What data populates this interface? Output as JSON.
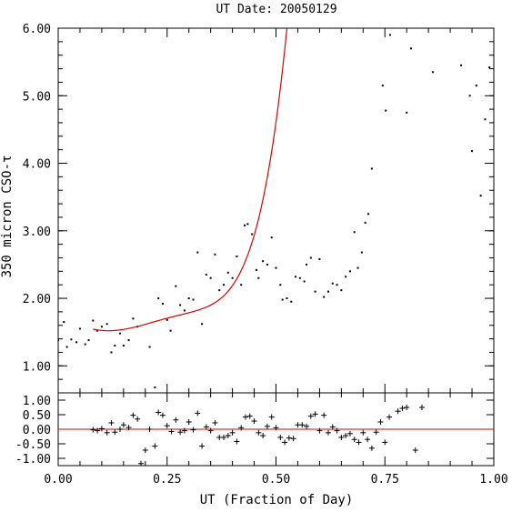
{
  "chart_data": [
    {
      "type": "scatter",
      "title": "UT Date: 20050129",
      "ylabel": "350 micron CSO-τ",
      "xlim": [
        0,
        1
      ],
      "ylim": [
        0.6,
        6.0
      ],
      "yticks": [
        "1.00",
        "2.00",
        "3.00",
        "4.00",
        "5.00",
        "6.00"
      ],
      "series": [
        {
          "points": [
            [
              0.0,
              1.38
            ],
            [
              0.013,
              1.65
            ],
            [
              0.02,
              1.28
            ],
            [
              0.03,
              1.39
            ],
            [
              0.042,
              1.35
            ],
            [
              0.05,
              1.55
            ],
            [
              0.062,
              1.32
            ],
            [
              0.07,
              1.38
            ],
            [
              0.08,
              1.67
            ],
            [
              0.09,
              1.52
            ],
            [
              0.1,
              1.58
            ],
            [
              0.112,
              1.62
            ],
            [
              0.122,
              1.2
            ],
            [
              0.13,
              1.3
            ],
            [
              0.142,
              1.48
            ],
            [
              0.15,
              1.3
            ],
            [
              0.162,
              1.38
            ],
            [
              0.172,
              1.7
            ],
            [
              0.182,
              1.58
            ],
            [
              0.2,
              0.58
            ],
            [
              0.21,
              1.28
            ],
            [
              0.222,
              0.68
            ],
            [
              0.23,
              2.0
            ],
            [
              0.24,
              1.92
            ],
            [
              0.25,
              1.68
            ],
            [
              0.258,
              1.52
            ],
            [
              0.27,
              2.18
            ],
            [
              0.28,
              1.9
            ],
            [
              0.29,
              1.82
            ],
            [
              0.3,
              2.0
            ],
            [
              0.31,
              1.98
            ],
            [
              0.32,
              2.68
            ],
            [
              0.33,
              1.62
            ],
            [
              0.34,
              2.35
            ],
            [
              0.35,
              2.3
            ],
            [
              0.36,
              2.65
            ],
            [
              0.37,
              2.12
            ],
            [
              0.38,
              2.2
            ],
            [
              0.39,
              2.38
            ],
            [
              0.4,
              2.3
            ],
            [
              0.41,
              2.62
            ],
            [
              0.42,
              2.2
            ],
            [
              0.428,
              3.08
            ],
            [
              0.435,
              3.1
            ],
            [
              0.445,
              2.95
            ],
            [
              0.455,
              2.42
            ],
            [
              0.46,
              2.3
            ],
            [
              0.47,
              2.55
            ],
            [
              0.48,
              2.5
            ],
            [
              0.49,
              2.9
            ],
            [
              0.5,
              2.45
            ],
            [
              0.51,
              2.2
            ],
            [
              0.515,
              1.98
            ],
            [
              0.525,
              2.0
            ],
            [
              0.535,
              1.95
            ],
            [
              0.545,
              2.32
            ],
            [
              0.555,
              2.3
            ],
            [
              0.565,
              2.25
            ],
            [
              0.57,
              2.5
            ],
            [
              0.58,
              2.6
            ],
            [
              0.59,
              2.1
            ],
            [
              0.6,
              2.58
            ],
            [
              0.61,
              2.02
            ],
            [
              0.62,
              2.1
            ],
            [
              0.63,
              2.22
            ],
            [
              0.64,
              2.2
            ],
            [
              0.65,
              2.12
            ],
            [
              0.66,
              2.32
            ],
            [
              0.67,
              2.4
            ],
            [
              0.68,
              2.98
            ],
            [
              0.688,
              2.45
            ],
            [
              0.697,
              2.68
            ],
            [
              0.705,
              3.12
            ],
            [
              0.712,
              3.25
            ],
            [
              0.72,
              3.92
            ],
            [
              0.745,
              5.15
            ],
            [
              0.752,
              4.78
            ],
            [
              0.762,
              5.9
            ],
            [
              0.77,
              6.1
            ],
            [
              0.8,
              4.75
            ],
            [
              0.81,
              5.7
            ],
            [
              0.86,
              5.35
            ],
            [
              0.925,
              5.45
            ],
            [
              0.945,
              5.0
            ],
            [
              0.95,
              4.18
            ],
            [
              0.96,
              5.15
            ],
            [
              0.97,
              3.52
            ],
            [
              0.98,
              4.65
            ],
            [
              0.99,
              5.42
            ]
          ]
        },
        {
          "fit_coefficients": [
            1.75,
            -3.06,
            -7.27,
            231.57,
            -887.47,
            1047.31
          ],
          "fit_x_range": [
            0.08,
            0.8
          ]
        }
      ]
    },
    {
      "type": "scatter",
      "xlabel": "UT (Fraction of Day)",
      "xlim": [
        0,
        1
      ],
      "ylim": [
        -1.25,
        1.25
      ],
      "xticks": [
        "0.00",
        "0.25",
        "0.50",
        "0.75",
        "1.00"
      ],
      "yticks": [
        "-1.00",
        "-0.50",
        "0.00",
        "0.50",
        "1.00"
      ],
      "series": [
        {
          "points": [
            [
              0.08,
              -0.02
            ],
            [
              0.09,
              -0.05
            ],
            [
              0.1,
              0.02
            ],
            [
              0.112,
              -0.12
            ],
            [
              0.122,
              0.22
            ],
            [
              0.13,
              -0.1
            ],
            [
              0.142,
              0.0
            ],
            [
              0.15,
              0.15
            ],
            [
              0.162,
              0.06
            ],
            [
              0.172,
              0.48
            ],
            [
              0.182,
              0.35
            ],
            [
              0.19,
              -1.18
            ],
            [
              0.2,
              -0.72
            ],
            [
              0.21,
              0.0
            ],
            [
              0.222,
              -0.58
            ],
            [
              0.23,
              0.58
            ],
            [
              0.24,
              0.48
            ],
            [
              0.25,
              0.12
            ],
            [
              0.26,
              -0.08
            ],
            [
              0.27,
              0.32
            ],
            [
              0.28,
              -0.1
            ],
            [
              0.29,
              -0.05
            ],
            [
              0.3,
              0.25
            ],
            [
              0.31,
              -0.02
            ],
            [
              0.32,
              0.55
            ],
            [
              0.33,
              -0.58
            ],
            [
              0.34,
              0.08
            ],
            [
              0.35,
              -0.05
            ],
            [
              0.36,
              0.22
            ],
            [
              0.37,
              -0.28
            ],
            [
              0.38,
              -0.28
            ],
            [
              0.39,
              -0.22
            ],
            [
              0.4,
              -0.12
            ],
            [
              0.41,
              -0.42
            ],
            [
              0.42,
              0.05
            ],
            [
              0.43,
              0.42
            ],
            [
              0.44,
              0.45
            ],
            [
              0.45,
              0.28
            ],
            [
              0.46,
              -0.12
            ],
            [
              0.47,
              -0.22
            ],
            [
              0.48,
              0.1
            ],
            [
              0.49,
              0.42
            ],
            [
              0.5,
              0.05
            ],
            [
              0.51,
              -0.28
            ],
            [
              0.52,
              -0.45
            ],
            [
              0.53,
              -0.3
            ],
            [
              0.54,
              -0.32
            ],
            [
              0.55,
              0.15
            ],
            [
              0.56,
              0.15
            ],
            [
              0.57,
              0.1
            ],
            [
              0.58,
              0.45
            ],
            [
              0.59,
              0.52
            ],
            [
              0.6,
              -0.05
            ],
            [
              0.61,
              0.48
            ],
            [
              0.62,
              -0.12
            ],
            [
              0.63,
              0.08
            ],
            [
              0.64,
              -0.05
            ],
            [
              0.65,
              -0.28
            ],
            [
              0.66,
              -0.22
            ],
            [
              0.67,
              -0.15
            ],
            [
              0.68,
              -0.35
            ],
            [
              0.69,
              -0.45
            ],
            [
              0.7,
              -0.12
            ],
            [
              0.71,
              -0.35
            ],
            [
              0.72,
              -0.65
            ],
            [
              0.73,
              -0.1
            ],
            [
              0.74,
              0.25
            ],
            [
              0.75,
              -0.45
            ],
            [
              0.76,
              0.42
            ],
            [
              0.78,
              0.62
            ],
            [
              0.79,
              0.72
            ],
            [
              0.8,
              0.75
            ],
            [
              0.82,
              -0.72
            ],
            [
              0.835,
              0.75
            ]
          ]
        }
      ]
    }
  ]
}
